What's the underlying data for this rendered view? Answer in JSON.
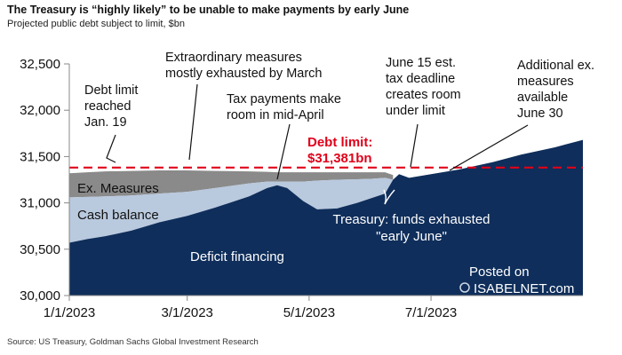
{
  "header": {
    "title": "The Treasury is “highly likely” to be unable to make payments by early June",
    "subtitle": "Projected public debt subject to limit, $bn"
  },
  "footer": {
    "source": "Source: US Treasury, Goldman Sachs Global Investment Research"
  },
  "watermark": {
    "line1": "Posted on",
    "line2": "ISABELNET.com"
  },
  "colors": {
    "deficit": "#0f2e5b",
    "cash": "#b9c9de",
    "ex_measures": "#8a8a8a",
    "limit": "#e0001a"
  },
  "chart_data": {
    "type": "area",
    "title": "The Treasury is “highly likely” to be unable to make payments by early June",
    "subtitle": "Projected public debt subject to limit, $bn",
    "xlabel": "",
    "ylabel": "",
    "ylim": [
      30000,
      32500
    ],
    "y_ticks": [
      "30,000",
      "30,500",
      "31,000",
      "31,500",
      "32,000",
      "32,500"
    ],
    "x_ticks": [
      "1/1/2023",
      "3/1/2023",
      "5/1/2023",
      "7/1/2023"
    ],
    "x_tick_dates": [
      "2023-01-01",
      "2023-03-01",
      "2023-05-01",
      "2023-07-01"
    ],
    "x_range": [
      "2023-01-01",
      "2023-09-15"
    ],
    "grid": false,
    "debt_limit": 31381,
    "series": [
      {
        "name": "Deficit financing",
        "x": [
          "2023-01-01",
          "2023-01-10",
          "2023-01-19",
          "2023-02-01",
          "2023-02-15",
          "2023-03-01",
          "2023-03-15",
          "2023-04-01",
          "2023-04-10",
          "2023-04-15",
          "2023-04-20",
          "2023-04-28",
          "2023-05-05",
          "2023-05-15",
          "2023-05-25",
          "2023-06-01",
          "2023-06-08",
          "2023-06-12",
          "2023-06-15",
          "2023-06-20",
          "2023-07-01",
          "2023-07-15",
          "2023-08-01",
          "2023-08-15",
          "2023-09-01",
          "2023-09-15"
        ],
        "values": [
          30570,
          30610,
          30640,
          30700,
          30790,
          30860,
          30950,
          31070,
          31160,
          31190,
          31160,
          31020,
          30930,
          30940,
          31000,
          31050,
          31100,
          31250,
          31310,
          31270,
          31310,
          31360,
          31440,
          31520,
          31600,
          31680
        ]
      },
      {
        "name": "Cash balance",
        "x": [
          "2023-01-01",
          "2023-01-10",
          "2023-01-19",
          "2023-02-01",
          "2023-02-15",
          "2023-03-01",
          "2023-03-15",
          "2023-04-01",
          "2023-04-10",
          "2023-04-15",
          "2023-04-20",
          "2023-04-28",
          "2023-05-05",
          "2023-05-15",
          "2023-05-25",
          "2023-06-01",
          "2023-06-08",
          "2023-06-12"
        ],
        "values": [
          31060,
          31065,
          31070,
          31080,
          31100,
          31120,
          31160,
          31210,
          31230,
          31230,
          31230,
          31230,
          31240,
          31250,
          31255,
          31260,
          31270,
          31250
        ]
      },
      {
        "name": "Ex. Measures",
        "x": [
          "2023-01-01",
          "2023-01-10",
          "2023-01-19",
          "2023-02-01",
          "2023-02-15",
          "2023-03-01",
          "2023-03-15",
          "2023-04-01",
          "2023-04-10",
          "2023-04-15",
          "2023-04-20",
          "2023-04-28",
          "2023-05-05",
          "2023-05-15",
          "2023-05-25",
          "2023-06-01",
          "2023-06-08",
          "2023-06-12"
        ],
        "values": [
          31320,
          31330,
          31340,
          31345,
          31350,
          31350,
          31345,
          31340,
          31335,
          31330,
          31330,
          31330,
          31330,
          31330,
          31330,
          31330,
          31330,
          31300
        ]
      }
    ],
    "annotations": [
      {
        "text": [
          "Debt limit",
          "reached",
          "Jan. 19"
        ],
        "style": "dark"
      },
      {
        "text": [
          "Extraordinary measures",
          "mostly exhausted by March"
        ],
        "style": "dark"
      },
      {
        "text": [
          "Tax payments make",
          "room in mid-April"
        ],
        "style": "dark"
      },
      {
        "text": [
          "June 15 est.",
          "tax deadline",
          "creates room",
          "under limit"
        ],
        "style": "dark"
      },
      {
        "text": [
          "Additional ex.",
          "measures",
          "available",
          "June 30"
        ],
        "style": "dark"
      },
      {
        "text": [
          "Debt limit:",
          "$31,381bn"
        ],
        "style": "limit"
      },
      {
        "text": [
          "Treasury: funds exhausted",
          "\"early June\""
        ],
        "style": "white"
      }
    ],
    "area_labels": [
      "Ex. Measures",
      "Cash balance",
      "Deficit financing"
    ]
  }
}
